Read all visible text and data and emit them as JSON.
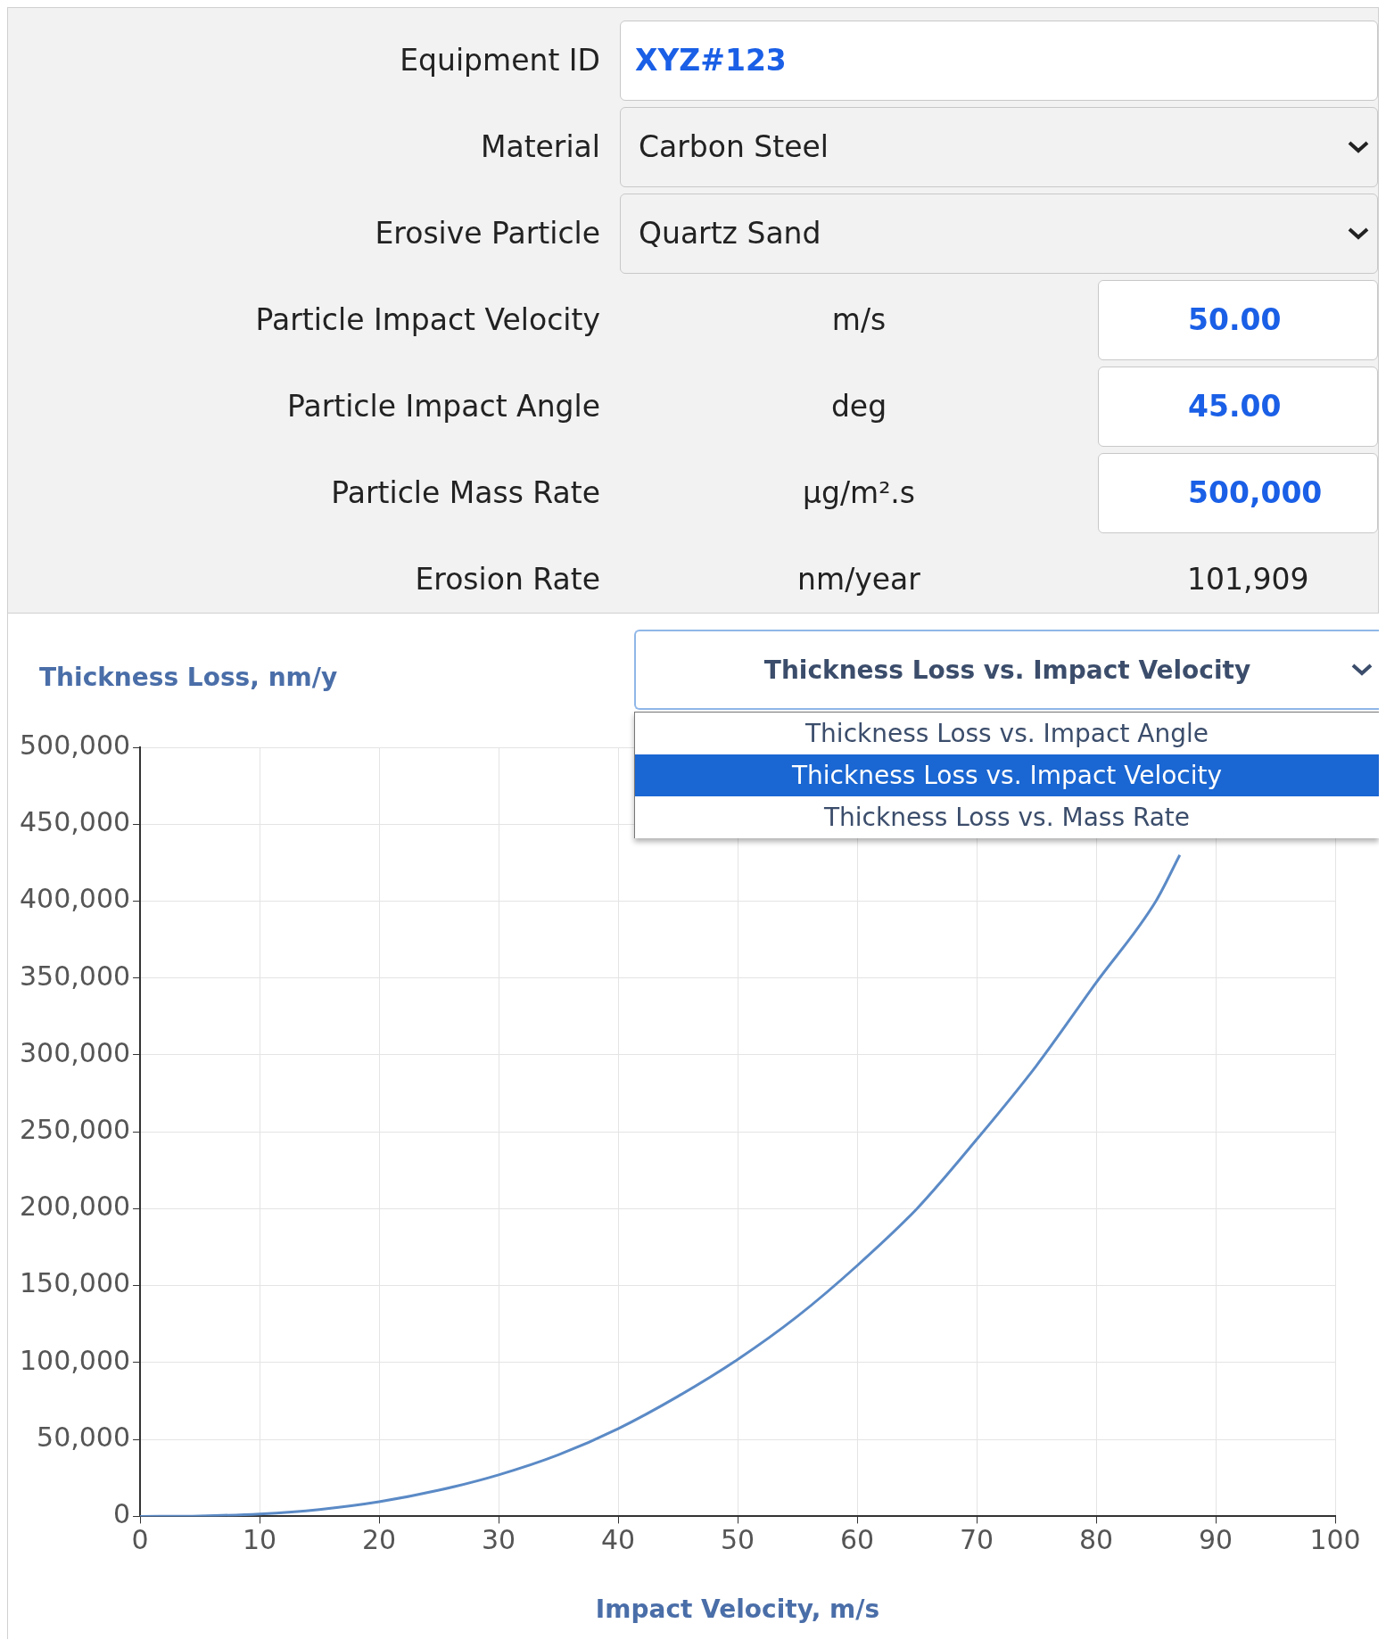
{
  "chart_data": [
    {
      "type": "other",
      "annotations": [
        "Equipment ID",
        "XYZ#123",
        "Material",
        "Carbon Steel",
        "Erosive Particle",
        "Quartz Sand",
        "Particle Impact Velocity",
        "m/s",
        "50.00",
        "Particle Impact Angle",
        "deg",
        "45.00",
        "Particle Mass Rate",
        "µg/m².s",
        "500,000",
        "Erosion Rate",
        "nm/year",
        "101,909"
      ]
    },
    {
      "type": "line",
      "title": "Thickness Loss vs. Impact Velocity",
      "ylabel": "Thickness Loss, nm/y",
      "xlabel": "Impact Velocity, m/s",
      "annotations": [
        "Thickness Loss vs. Impact Angle",
        "Thickness Loss vs. Impact Velocity",
        "Thickness Loss vs. Mass Rate"
      ],
      "x": [
        0,
        5,
        10,
        15,
        20,
        25,
        30,
        35,
        40,
        45,
        50,
        55,
        60,
        65,
        70,
        75,
        80,
        85,
        87
      ],
      "series": [
        {
          "color": "#5b8ac6",
          "values": [
            0,
            300,
            1600,
            4500,
            9500,
            17000,
            27000,
            40000,
            57000,
            78000,
            102000,
            130000,
            163000,
            200000,
            245000,
            293000,
            347000,
            400000,
            430000
          ]
        }
      ],
      "xlim": [
        0,
        100
      ],
      "xticks": [
        0,
        10,
        20,
        30,
        40,
        50,
        60,
        70,
        80,
        90,
        100
      ],
      "ylim": [
        0,
        500000
      ],
      "yticks": [
        {
          "value": 0,
          "label": "0"
        },
        {
          "value": 50000,
          "label": "50,000"
        },
        {
          "value": 100000,
          "label": "100,000"
        },
        {
          "value": 150000,
          "label": "150,000"
        },
        {
          "value": 200000,
          "label": "200,000"
        },
        {
          "value": 250000,
          "label": "250,000"
        },
        {
          "value": 300000,
          "label": "300,000"
        },
        {
          "value": 350000,
          "label": "350,000"
        },
        {
          "value": 400000,
          "label": "400,000"
        },
        {
          "value": 450000,
          "label": "450,000"
        },
        {
          "value": 500000,
          "label": "500,000"
        }
      ],
      "grid": true,
      "legend": false,
      "marker": "none",
      "line_style": "solid"
    }
  ]
}
